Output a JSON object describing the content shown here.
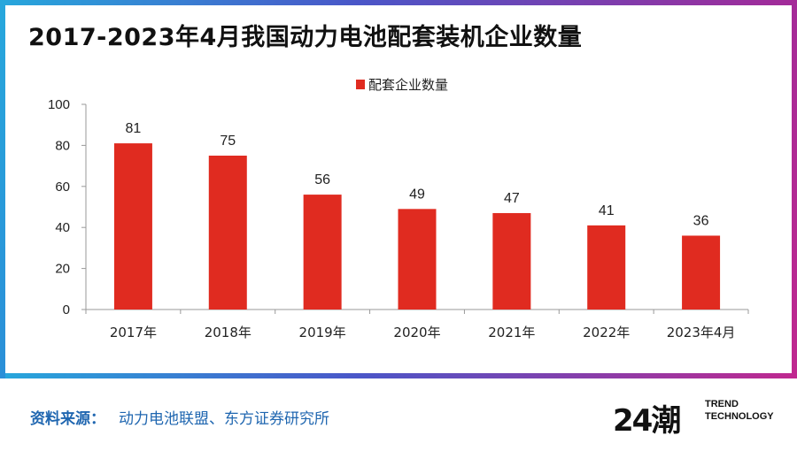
{
  "title": "2017-2023年4月我国动力电池配套装机企业数量",
  "chart_data": {
    "type": "bar",
    "categories": [
      "2017年",
      "2018年",
      "2019年",
      "2020年",
      "2021年",
      "2022年",
      "2023年4月"
    ],
    "series": [
      {
        "name": "配套企业数量",
        "values": [
          81,
          75,
          56,
          49,
          47,
          41,
          36
        ]
      }
    ],
    "ylim": [
      0,
      100
    ],
    "yticks": [
      0,
      20,
      40,
      60,
      80,
      100
    ],
    "legend_position": "top-center",
    "bar_color": "#e02b20",
    "xlabel": "",
    "ylabel": ""
  },
  "footer": {
    "source_label": "资料来源：",
    "source_text": "动力电池联盟、东方证券研究所"
  },
  "logo": {
    "mark": "24潮",
    "line1": "TREND",
    "line2": "TECHNOLOGY"
  }
}
